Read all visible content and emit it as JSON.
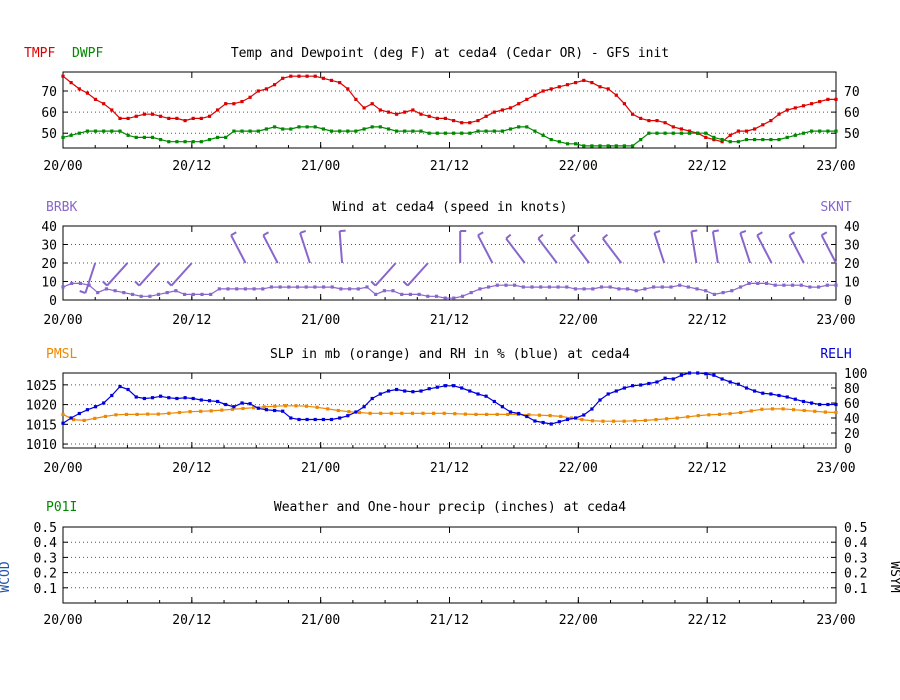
{
  "colors": {
    "red": "#dd0000",
    "green": "#008800",
    "purple": "#8866cc",
    "orange": "#ee8800",
    "blue": "#0000dd",
    "precipGreen": "#008800",
    "wcodBlue": "#2255aa",
    "axis": "#000000",
    "grid": "#555555"
  },
  "chart_data": [
    {
      "type": "line",
      "title": "Temp and Dewpoint (deg F) at ceda4 (Cedar OR) - GFS init",
      "left_labels": [
        "TMPF",
        "DWPF"
      ],
      "right_label": "",
      "xlabels": [
        "20/00",
        "20/12",
        "21/00",
        "21/12",
        "22/00",
        "22/12",
        "23/00"
      ],
      "x_range": [
        0,
        72
      ],
      "ylim": [
        43,
        79
      ],
      "yticks": [
        50,
        60,
        70
      ],
      "right_yticks": [
        50,
        60,
        70
      ],
      "series": [
        {
          "name": "TMPF",
          "color": "red",
          "values": [
            77,
            74,
            71,
            69,
            66,
            64,
            61,
            57,
            57,
            58,
            59,
            59,
            58,
            57,
            57,
            56,
            57,
            57,
            58,
            61,
            64,
            64,
            65,
            67,
            70,
            71,
            73,
            76,
            77,
            77,
            77,
            77,
            76,
            75,
            74,
            71,
            66,
            62,
            64,
            61,
            60,
            59,
            60,
            61,
            59,
            58,
            57,
            57,
            56,
            55,
            55,
            56,
            58,
            60,
            61,
            62,
            64,
            66,
            68,
            70,
            71,
            72,
            73,
            74,
            75,
            74,
            72,
            71,
            68,
            64,
            59,
            57,
            56,
            56,
            55,
            53,
            52,
            51,
            50,
            48,
            47,
            46,
            49,
            51,
            51,
            52,
            54,
            56,
            59,
            61,
            62,
            63,
            64,
            65,
            66,
            66
          ]
        },
        {
          "name": "DWPF",
          "color": "green",
          "values": [
            48,
            49,
            50,
            51,
            51,
            51,
            51,
            51,
            49,
            48,
            48,
            48,
            47,
            46,
            46,
            46,
            46,
            46,
            47,
            48,
            48,
            51,
            51,
            51,
            51,
            52,
            53,
            52,
            52,
            53,
            53,
            53,
            52,
            51,
            51,
            51,
            51,
            52,
            53,
            53,
            52,
            51,
            51,
            51,
            51,
            50,
            50,
            50,
            50,
            50,
            50,
            51,
            51,
            51,
            51,
            52,
            53,
            53,
            51,
            49,
            47,
            46,
            45,
            45,
            44,
            44,
            44,
            44,
            44,
            44,
            44,
            47,
            50,
            50,
            50,
            50,
            50,
            50,
            50,
            50,
            48,
            47,
            46,
            46,
            47,
            47,
            47,
            47,
            47,
            48,
            49,
            50,
            51,
            51,
            51,
            51
          ]
        }
      ]
    },
    {
      "type": "line",
      "title": "Wind at  ceda4 (speed in knots)",
      "left_labels": [
        "BRBK"
      ],
      "right_label": "SKNT",
      "xlabels": [
        "20/00",
        "20/12",
        "21/00",
        "21/12",
        "22/00",
        "22/12",
        "23/00"
      ],
      "x_range": [
        0,
        72
      ],
      "ylim": [
        0,
        40
      ],
      "yticks": [
        0,
        10,
        20,
        30,
        40
      ],
      "right_yticks": [
        0,
        10,
        20,
        30,
        40
      ],
      "series": [
        {
          "name": "SKNT",
          "color": "purple",
          "values": [
            7,
            9,
            9,
            8,
            4,
            6,
            5,
            4,
            3,
            2,
            2,
            3,
            4,
            5,
            3,
            3,
            3,
            3,
            6,
            6,
            6,
            6,
            6,
            6,
            7,
            7,
            7,
            7,
            7,
            7,
            7,
            7,
            6,
            6,
            6,
            7,
            3,
            5,
            5,
            3,
            3,
            3,
            2,
            2,
            1,
            1,
            2,
            4,
            6,
            7,
            8,
            8,
            8,
            7,
            7,
            7,
            7,
            7,
            7,
            6,
            6,
            6,
            7,
            7,
            6,
            6,
            5,
            6,
            7,
            7,
            7,
            8,
            7,
            6,
            5,
            3,
            4,
            5,
            7,
            9,
            9,
            9,
            8,
            8,
            8,
            8,
            7,
            7,
            8,
            8
          ]
        }
      ],
      "barbs_x": [
        3,
        6,
        9,
        12,
        15,
        18,
        21,
        24,
        27,
        30,
        33,
        36,
        39,
        42,
        45,
        48,
        51,
        54,
        57,
        60,
        63,
        66,
        69,
        72
      ],
      "barbs": [
        {
          "t": 3,
          "dir": 200,
          "spd": 10
        },
        {
          "t": 6,
          "dir": 225,
          "spd": 10
        },
        {
          "t": 9,
          "dir": 225,
          "spd": 10
        },
        {
          "t": 12,
          "dir": 225,
          "spd": 10
        },
        {
          "t": 17,
          "dir": 330,
          "spd": 10
        },
        {
          "t": 20,
          "dir": 330,
          "spd": 10
        },
        {
          "t": 23,
          "dir": 340,
          "spd": 10
        },
        {
          "t": 26,
          "dir": 355,
          "spd": 10
        },
        {
          "t": 31,
          "dir": 225,
          "spd": 10
        },
        {
          "t": 34,
          "dir": 225,
          "spd": 10
        },
        {
          "t": 37,
          "dir": 0,
          "spd": 10
        },
        {
          "t": 40,
          "dir": 330,
          "spd": 10
        },
        {
          "t": 43,
          "dir": 320,
          "spd": 10
        },
        {
          "t": 46,
          "dir": 320,
          "spd": 10
        },
        {
          "t": 49,
          "dir": 320,
          "spd": 10
        },
        {
          "t": 52,
          "dir": 320,
          "spd": 10
        },
        {
          "t": 56,
          "dir": 340,
          "spd": 10
        },
        {
          "t": 59,
          "dir": 350,
          "spd": 10
        },
        {
          "t": 61,
          "dir": 350,
          "spd": 10
        },
        {
          "t": 64,
          "dir": 340,
          "spd": 10
        },
        {
          "t": 66,
          "dir": 330,
          "spd": 10
        },
        {
          "t": 69,
          "dir": 330,
          "spd": 10
        },
        {
          "t": 72,
          "dir": 330,
          "spd": 10
        }
      ]
    },
    {
      "type": "line",
      "title": "SLP in mb (orange) and RH in % (blue) at  ceda4",
      "left_labels": [
        "PMSL"
      ],
      "right_label": "RELH",
      "xlabels": [
        "20/00",
        "20/12",
        "21/00",
        "21/12",
        "22/00",
        "22/12",
        "23/00"
      ],
      "x_range": [
        0,
        72
      ],
      "ylim": [
        1009,
        1028
      ],
      "yticks": [
        1010,
        1015,
        1020,
        1025
      ],
      "right_ylim": [
        0,
        100
      ],
      "right_yticks": [
        0,
        20,
        40,
        60,
        80,
        100
      ],
      "series": [
        {
          "name": "PMSL",
          "color": "orange",
          "axis": "left",
          "values": [
            1017.5,
            1016.2,
            1016.0,
            1016.5,
            1017.0,
            1017.4,
            1017.5,
            1017.5,
            1017.6,
            1017.6,
            1017.8,
            1018.0,
            1018.2,
            1018.3,
            1018.4,
            1018.6,
            1018.8,
            1019.0,
            1019.2,
            1019.4,
            1019.6,
            1019.7,
            1019.7,
            1019.6,
            1019.3,
            1018.9,
            1018.5,
            1018.2,
            1018.0,
            1017.8,
            1017.8,
            1017.8,
            1017.8,
            1017.8,
            1017.8,
            1017.8,
            1017.8,
            1017.7,
            1017.6,
            1017.5,
            1017.5,
            1017.5,
            1017.5,
            1017.5,
            1017.4,
            1017.3,
            1017.2,
            1017.0,
            1016.6,
            1016.2,
            1015.9,
            1015.8,
            1015.8,
            1015.8,
            1015.9,
            1016.0,
            1016.2,
            1016.4,
            1016.6,
            1016.9,
            1017.2,
            1017.4,
            1017.5,
            1017.7,
            1018.0,
            1018.4,
            1018.8,
            1018.9,
            1018.9,
            1018.7,
            1018.5,
            1018.3,
            1018.1,
            1018.0
          ]
        },
        {
          "name": "RELH",
          "color": "blue",
          "axis": "right",
          "values": [
            33,
            40,
            46,
            51,
            55,
            60,
            70,
            82,
            78,
            68,
            66,
            67,
            69,
            67,
            66,
            67,
            66,
            64,
            63,
            62,
            58,
            55,
            60,
            59,
            53,
            51,
            50,
            49,
            40,
            38,
            38,
            38,
            38,
            38,
            40,
            43,
            48,
            55,
            66,
            72,
            76,
            78,
            76,
            75,
            76,
            79,
            81,
            83,
            83,
            80,
            76,
            72,
            69,
            62,
            55,
            48,
            46,
            42,
            36,
            34,
            32,
            35,
            38,
            40,
            44,
            52,
            64,
            72,
            76,
            80,
            83,
            84,
            86,
            88,
            93,
            92,
            97,
            100,
            100,
            99,
            97,
            92,
            88,
            85,
            80,
            76,
            73,
            72,
            70,
            68,
            65,
            62,
            60,
            58,
            58,
            58
          ]
        }
      ]
    },
    {
      "type": "line",
      "title": "Weather and One-hour precip (inches) at  ceda4",
      "left_labels": [
        "P01I"
      ],
      "right_label": "",
      "side_left_label": "WCOD",
      "side_right_label": "WSYM",
      "xlabels": [
        "20/00",
        "20/12",
        "21/00",
        "21/12",
        "22/00",
        "22/12",
        "23/00"
      ],
      "x_range": [
        0,
        72
      ],
      "ylim": [
        0,
        0.5
      ],
      "yticks": [
        "0.1",
        "0.2",
        "0.3",
        "0.4",
        "0.5"
      ],
      "right_yticks": [
        "0.1",
        "0.2",
        "0.3",
        "0.4",
        "0.5"
      ],
      "series": []
    }
  ]
}
